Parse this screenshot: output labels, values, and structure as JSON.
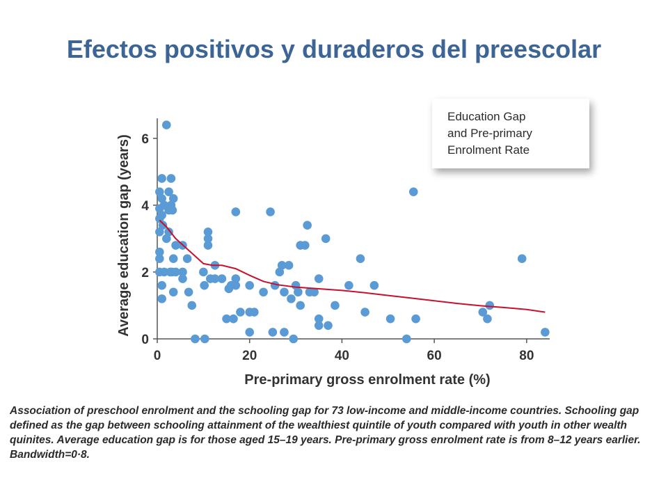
{
  "title": "Efectos positivos y duraderos del preescolar",
  "chart_data": {
    "type": "scatter",
    "title_box": [
      "Education Gap",
      "and Pre-primary",
      "Enrolment Rate"
    ],
    "xlabel": "Pre-primary gross enrolment rate (%)",
    "ylabel": "Average education gap (years)",
    "xlim": [
      0,
      85
    ],
    "ylim": [
      0,
      6.6
    ],
    "xticks": [
      0,
      20,
      40,
      60,
      80
    ],
    "yticks": [
      0,
      2,
      4,
      6
    ],
    "grid": false,
    "colors": {
      "points": "#5b9bd5",
      "smooth": "#c8102e",
      "axis": "#555555"
    },
    "points": [
      [
        2,
        6.4
      ],
      [
        1,
        4.8
      ],
      [
        3,
        4.8
      ],
      [
        0.5,
        4.4
      ],
      [
        2.5,
        4.4
      ],
      [
        1,
        4.2
      ],
      [
        3.5,
        4.2
      ],
      [
        1.5,
        4.0
      ],
      [
        3,
        4.0
      ],
      [
        0.5,
        3.9
      ],
      [
        2.5,
        3.85
      ],
      [
        3.3,
        3.85
      ],
      [
        1,
        3.7
      ],
      [
        0.5,
        3.6
      ],
      [
        1.2,
        3.4
      ],
      [
        0.5,
        3.2
      ],
      [
        2.5,
        3.2
      ],
      [
        2.0,
        3.0
      ],
      [
        4,
        2.8
      ],
      [
        5.5,
        2.8
      ],
      [
        0.5,
        2.6
      ],
      [
        0.5,
        2.4
      ],
      [
        3.5,
        2.4
      ],
      [
        6.5,
        2.4
      ],
      [
        0.5,
        2.0
      ],
      [
        1.5,
        2.0
      ],
      [
        2.8,
        2.0
      ],
      [
        3.2,
        2.0
      ],
      [
        4.0,
        2.0
      ],
      [
        5.5,
        2.0
      ],
      [
        5.5,
        1.8
      ],
      [
        1.0,
        1.6
      ],
      [
        6.8,
        1.4
      ],
      [
        3.5,
        1.4
      ],
      [
        1.0,
        1.2
      ],
      [
        7.5,
        1.0
      ],
      [
        8.2,
        0.0
      ],
      [
        11,
        3.2
      ],
      [
        11,
        3.0
      ],
      [
        11,
        2.8
      ],
      [
        12.5,
        2.2
      ],
      [
        10,
        2.0
      ],
      [
        11.5,
        1.8
      ],
      [
        12.5,
        1.8
      ],
      [
        10.2,
        1.6
      ],
      [
        14,
        1.8
      ],
      [
        17,
        3.8
      ],
      [
        17,
        1.8
      ],
      [
        16,
        1.6
      ],
      [
        17,
        1.6
      ],
      [
        15.5,
        1.5
      ],
      [
        15,
        0.6
      ],
      [
        16.5,
        0.6
      ],
      [
        18,
        0.8
      ],
      [
        20,
        0.8
      ],
      [
        21,
        0.8
      ],
      [
        20,
        1.6
      ],
      [
        20,
        0.2
      ],
      [
        10.3,
        0.0
      ],
      [
        24.5,
        3.8
      ],
      [
        23,
        1.4
      ],
      [
        25.5,
        1.6
      ],
      [
        26.5,
        2.0
      ],
      [
        27,
        2.2
      ],
      [
        28.5,
        2.2
      ],
      [
        27.5,
        1.4
      ],
      [
        29,
        1.2
      ],
      [
        30,
        1.6
      ],
      [
        30.5,
        1.4
      ],
      [
        31,
        2.8
      ],
      [
        32,
        2.8
      ],
      [
        32.5,
        3.4
      ],
      [
        31,
        1.0
      ],
      [
        33,
        1.4
      ],
      [
        34,
        1.4
      ],
      [
        35,
        1.8
      ],
      [
        35,
        0.6
      ],
      [
        35,
        0.4
      ],
      [
        36.5,
        3.0
      ],
      [
        37,
        0.4
      ],
      [
        38.5,
        1.0
      ],
      [
        25,
        0.2
      ],
      [
        27.5,
        0.2
      ],
      [
        29.5,
        0.0
      ],
      [
        41.5,
        1.6
      ],
      [
        44,
        2.4
      ],
      [
        45,
        0.8
      ],
      [
        47,
        1.6
      ],
      [
        50.5,
        0.6
      ],
      [
        55.5,
        4.4
      ],
      [
        56,
        0.6
      ],
      [
        54,
        0.0
      ],
      [
        70.5,
        0.8
      ],
      [
        71.5,
        0.6
      ],
      [
        72,
        1.0
      ],
      [
        79,
        2.4
      ],
      [
        84,
        0.2
      ]
    ],
    "smooth_curve": [
      [
        0.5,
        3.55
      ],
      [
        2,
        3.35
      ],
      [
        4,
        3.0
      ],
      [
        6,
        2.75
      ],
      [
        8,
        2.5
      ],
      [
        10,
        2.25
      ],
      [
        12,
        2.2
      ],
      [
        14,
        2.2
      ],
      [
        17,
        2.1
      ],
      [
        20,
        1.9
      ],
      [
        23,
        1.72
      ],
      [
        26,
        1.62
      ],
      [
        30,
        1.55
      ],
      [
        35,
        1.5
      ],
      [
        40,
        1.45
      ],
      [
        45,
        1.38
      ],
      [
        50,
        1.3
      ],
      [
        55,
        1.22
      ],
      [
        60,
        1.14
      ],
      [
        65,
        1.06
      ],
      [
        70,
        0.99
      ],
      [
        75,
        0.94
      ],
      [
        80,
        0.88
      ],
      [
        84,
        0.8
      ]
    ]
  },
  "caption": "Association of preschool enrolment and the schooling gap for 73 low-income and middle-income countries. Schooling gap defined as the gap between schooling attainment of the wealthiest quintile of youth compared with youth in other wealth quinites. Average education gap is for those aged 15–19 years. Pre-primary gross enrolment rate is from 8–12 years earlier. Bandwidth=0·8."
}
